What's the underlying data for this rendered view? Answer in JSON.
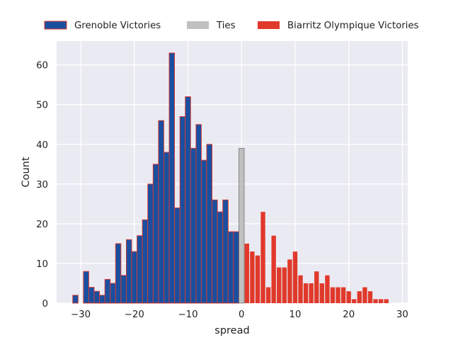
{
  "colors": {
    "background": "#ffffff",
    "plot_background": "#eaeaf2",
    "grid": "#ffffff",
    "grenoble_fill": "#1a4fa0",
    "grenoble_edge": "#e0392b",
    "ties": "#c0c0c0",
    "biarritz": "#e0392b"
  },
  "chart_data": {
    "type": "bar",
    "title": "",
    "xlabel": "spread",
    "ylabel": "Count",
    "xlim": [
      -34.5,
      31.0
    ],
    "ylim": [
      0,
      66
    ],
    "xticks": [
      -30,
      -20,
      -10,
      0,
      10,
      20,
      30
    ],
    "yticks": [
      0,
      10,
      20,
      30,
      40,
      50,
      60
    ],
    "grid": true,
    "legend_position": "top, above plot",
    "legend": [
      "Grenoble Victories",
      "Ties",
      "Biarritz Olympique Victories"
    ],
    "series": [
      {
        "name": "Grenoble Victories",
        "x": [
          -31,
          -29,
          -28,
          -27,
          -26,
          -25,
          -24,
          -23,
          -22,
          -21,
          -20,
          -19,
          -18,
          -17,
          -16,
          -15,
          -14,
          -13,
          -12,
          -11,
          -10,
          -9,
          -8,
          -7,
          -6,
          -5,
          -4,
          -3,
          -2,
          -1
        ],
        "values": [
          2,
          8,
          4,
          3,
          2,
          6,
          5,
          15,
          7,
          16,
          13,
          17,
          21,
          30,
          35,
          46,
          38,
          63,
          24,
          47,
          52,
          39,
          45,
          36,
          40,
          26,
          23,
          26,
          18,
          18
        ]
      },
      {
        "name": "Ties",
        "x": [
          0
        ],
        "values": [
          39
        ]
      },
      {
        "name": "Biarritz Olympique Victories",
        "x": [
          1,
          2,
          3,
          4,
          5,
          6,
          7,
          8,
          9,
          10,
          11,
          12,
          13,
          14,
          15,
          16,
          17,
          18,
          19,
          20,
          21,
          22,
          23,
          24,
          25,
          26,
          27
        ],
        "values": [
          15,
          13,
          12,
          23,
          4,
          17,
          9,
          9,
          11,
          13,
          7,
          5,
          5,
          8,
          5,
          7,
          4,
          4,
          4,
          3,
          1,
          3,
          4,
          3,
          1,
          1,
          1
        ]
      }
    ]
  }
}
